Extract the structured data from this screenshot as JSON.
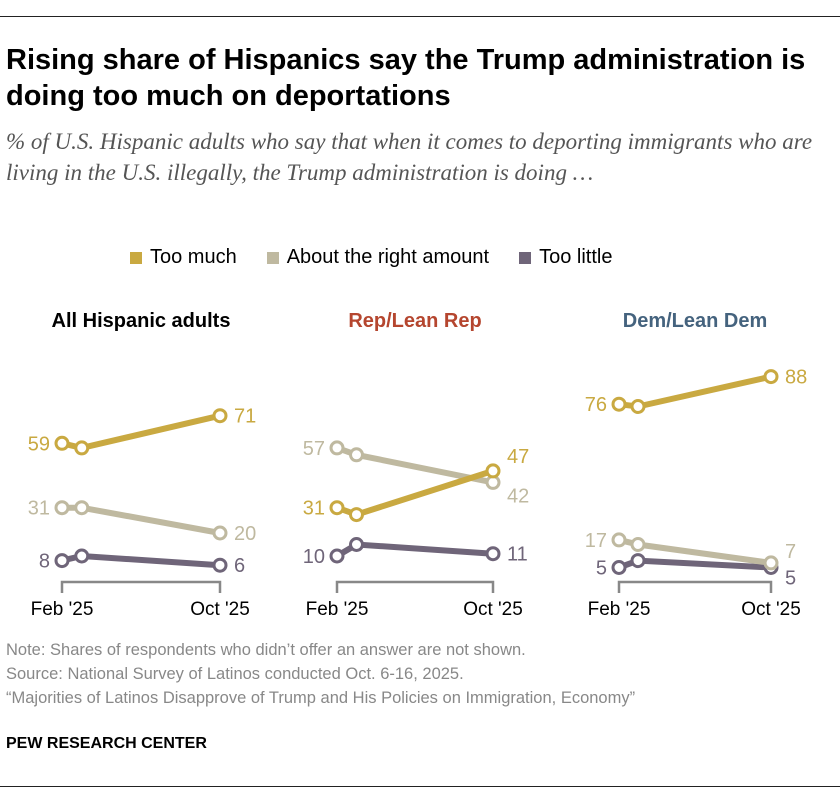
{
  "title": "Rising share of Hispanics say the Trump administration is doing too much on deportations",
  "subtitle": "% of U.S. Hispanic adults who say that when it comes to deporting immigrants who are living in the U.S. illegally, the Trump administration is doing …",
  "legend": [
    {
      "label": "Too much",
      "color": "#C9A941"
    },
    {
      "label": "About the right amount",
      "color": "#BFB9A0"
    },
    {
      "label": "Too little",
      "color": "#6F6579"
    }
  ],
  "notes": [
    "Note: Shares of respondents who didn’t offer an answer are not shown.",
    "Source: National Survey of Latinos conducted Oct. 6-16, 2025.",
    "“Majorities of Latinos Disapprove of Trump and His Policies on Immigration, Economy”"
  ],
  "brand": "PEW RESEARCH CENTER",
  "chart_data": [
    {
      "type": "line",
      "title": "All Hispanic adults",
      "title_color": "#000000",
      "x": [
        "2025-02",
        "2025-03",
        "2025-10"
      ],
      "x_tick_labels": [
        "Feb '25",
        "Oct '25"
      ],
      "series": [
        {
          "name": "Too much",
          "values": [
            59,
            57,
            71
          ]
        },
        {
          "name": "About the right amount",
          "values": [
            31,
            31,
            20
          ]
        },
        {
          "name": "Too little",
          "values": [
            8,
            10,
            6
          ]
        }
      ]
    },
    {
      "type": "line",
      "title": "Rep/Lean Rep",
      "title_color": "#B5462F",
      "x": [
        "2025-02",
        "2025-03",
        "2025-10"
      ],
      "x_tick_labels": [
        "Feb '25",
        "Oct '25"
      ],
      "series": [
        {
          "name": "Too much",
          "values": [
            31,
            28,
            47
          ]
        },
        {
          "name": "About the right amount",
          "values": [
            57,
            54,
            42
          ]
        },
        {
          "name": "Too little",
          "values": [
            10,
            15,
            11
          ]
        }
      ]
    },
    {
      "type": "line",
      "title": "Dem/Lean Dem",
      "title_color": "#45637E",
      "x": [
        "2025-02",
        "2025-03",
        "2025-10"
      ],
      "x_tick_labels": [
        "Feb '25",
        "Oct '25"
      ],
      "series": [
        {
          "name": "Too much",
          "values": [
            76,
            75,
            88
          ]
        },
        {
          "name": "About the right amount",
          "values": [
            17,
            15,
            7
          ]
        },
        {
          "name": "Too little",
          "values": [
            5,
            8,
            5
          ]
        }
      ]
    }
  ]
}
